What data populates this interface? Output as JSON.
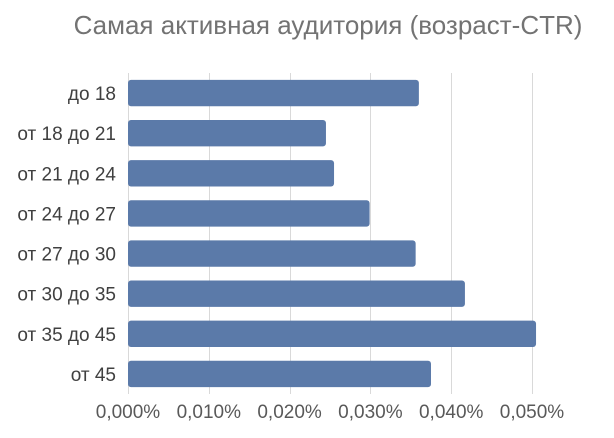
{
  "chart_data": {
    "type": "bar",
    "orientation": "horizontal",
    "title": "Самая активная аудитория (возраст-CTR)",
    "categories": [
      "до 18",
      "от 18 до 21",
      "от 21 до 24",
      "от 24 до 27",
      "от 27 до 30",
      "от 30 до 35",
      "от 35 до 45",
      "от 45"
    ],
    "values": [
      0.036,
      0.0245,
      0.0255,
      0.0299,
      0.0356,
      0.0417,
      0.0505,
      0.0375
    ],
    "xlabel": "",
    "ylabel": "",
    "xlim": [
      0,
      0.05
    ],
    "x_ticks": [
      0,
      0.01,
      0.02,
      0.03,
      0.04,
      0.05
    ],
    "x_tick_labels": [
      "0,000%",
      "0,010%",
      "0,020%",
      "0,030%",
      "0,040%",
      "0,050%"
    ],
    "grid": true,
    "legend": "none",
    "bar_color": "#5b7aa9"
  }
}
